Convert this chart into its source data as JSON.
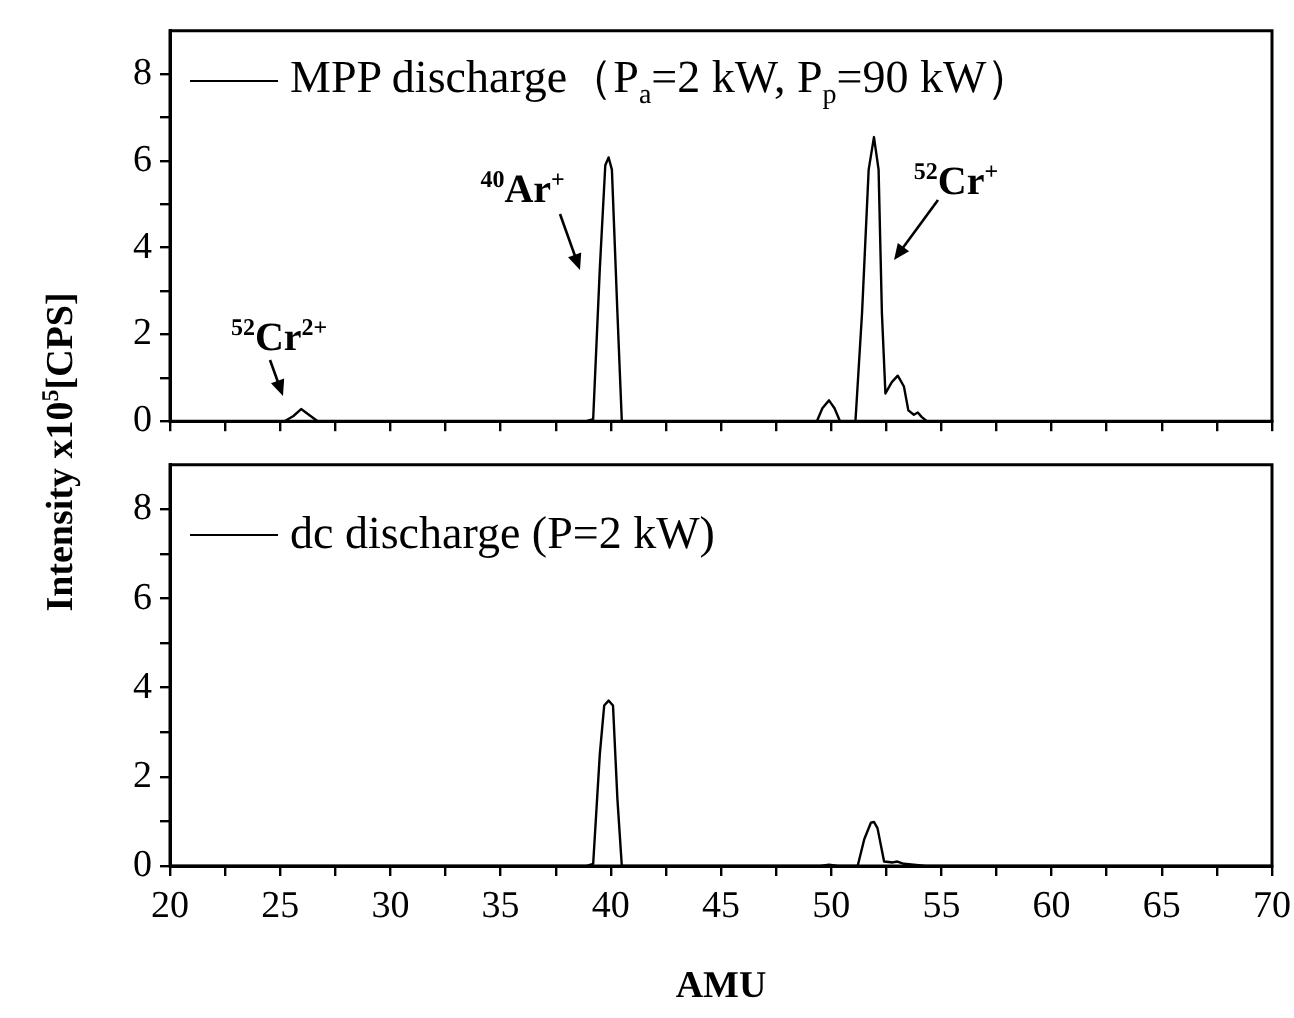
{
  "chart_data": [
    {
      "type": "line",
      "ylabel": "Intensity x10$^{5}$[CPS]",
      "series": [
        {
          "name": "MPP discharge（P$_{a}$=2 kW, P$_{p}$=90 kW）",
          "color": "#000000",
          "x": [
            20,
            25.2,
            25.6,
            25.95,
            26.3,
            26.7,
            38.9,
            39.2,
            39.5,
            39.75,
            39.9,
            40.05,
            40.3,
            40.5,
            49.35,
            49.6,
            49.9,
            50.15,
            50.4,
            51.1,
            51.4,
            51.7,
            51.94,
            52.15,
            52.3,
            52.46,
            52.75,
            53.02,
            53.3,
            53.5,
            53.75,
            53.93,
            54.1,
            54.34,
            70
          ],
          "values": [
            0,
            0,
            0.12,
            0.28,
            0.15,
            0,
            0,
            0.05,
            3.5,
            5.9,
            6.08,
            5.8,
            2.5,
            0,
            0,
            0.3,
            0.48,
            0.3,
            0,
            0,
            2.5,
            5.8,
            6.55,
            5.8,
            2.5,
            0.64,
            0.9,
            1.05,
            0.8,
            0.25,
            0.15,
            0.2,
            0.1,
            0,
            0
          ]
        }
      ],
      "xlim": [
        20,
        70
      ],
      "xticks": [
        20,
        {
          "value": 22.5,
          "label": null
        },
        {
          "value": 25,
          "label": null
        },
        {
          "value": 27.5,
          "label": null
        },
        {
          "value": 30,
          "label": null
        },
        {
          "value": 32.5,
          "label": null
        },
        {
          "value": 35,
          "label": null
        },
        {
          "value": 37.5,
          "label": null
        },
        {
          "value": 40,
          "label": null
        },
        {
          "value": 42.5,
          "label": null
        },
        {
          "value": 45,
          "label": null
        },
        {
          "value": 47.5,
          "label": null
        },
        {
          "value": 50,
          "label": null
        },
        {
          "value": 52.5,
          "label": null
        },
        {
          "value": 55,
          "label": null
        },
        {
          "value": 57.5,
          "label": null
        },
        {
          "value": 60,
          "label": null
        },
        {
          "value": 62.5,
          "label": null
        },
        {
          "value": 65,
          "label": null
        },
        {
          "value": 67.5,
          "label": null
        },
        {
          "value": 70,
          "label": null
        }
      ],
      "ylim": [
        0,
        9
      ],
      "yticks": [
        0,
        {
          "value": 1,
          "label": null
        },
        2,
        {
          "value": 3,
          "label": null
        },
        4,
        {
          "value": 5,
          "label": null
        },
        6,
        {
          "value": 7,
          "label": null
        },
        8
      ],
      "tick_labels": "y",
      "grid": false,
      "legend": "top left",
      "marker": "none",
      "line_style": "solid",
      "annotations": [
        {
          "text": "$^{52}$Cr$^{2+}$",
          "x": 25.95,
          "y": 0.28
        },
        {
          "text": "$^{40}$Ar$^{+}$",
          "x": 39.9,
          "y": 6.08
        },
        {
          "text": "$^{52}$Cr$^{+}$",
          "x": 51.94,
          "y": 6.55
        }
      ]
    },
    {
      "type": "line",
      "xlabel": "AMU",
      "series": [
        {
          "name": "dc discharge (P=2 kW)",
          "color": "#000000",
          "x": [
            20,
            38.9,
            39.2,
            39.5,
            39.7,
            39.9,
            40.1,
            40.3,
            40.5,
            49.5,
            49.9,
            50.3,
            51.2,
            51.5,
            51.8,
            51.94,
            52.1,
            52.4,
            52.8,
            53.0,
            53.3,
            54.3,
            70
          ],
          "values": [
            0,
            0,
            0.05,
            2.5,
            3.6,
            3.71,
            3.6,
            1.5,
            0,
            0,
            0.03,
            0,
            0,
            0.6,
            0.97,
            0.99,
            0.85,
            0.1,
            0.08,
            0.1,
            0.05,
            0,
            0
          ]
        }
      ],
      "xlim": [
        20,
        70
      ],
      "xticks": [
        20,
        {
          "value": 22.5,
          "label": null
        },
        25,
        {
          "value": 27.5,
          "label": null
        },
        30,
        {
          "value": 32.5,
          "label": null
        },
        35,
        {
          "value": 37.5,
          "label": null
        },
        40,
        {
          "value": 42.5,
          "label": null
        },
        45,
        {
          "value": 47.5,
          "label": null
        },
        50,
        {
          "value": 52.5,
          "label": null
        },
        55,
        {
          "value": 57.5,
          "label": null
        },
        60,
        {
          "value": 62.5,
          "label": null
        },
        65,
        {
          "value": 67.5,
          "label": null
        },
        70
      ],
      "ylim": [
        0,
        9
      ],
      "yticks": [
        0,
        {
          "value": 1,
          "label": null
        },
        2,
        {
          "value": 3,
          "label": null
        },
        4,
        {
          "value": 5,
          "label": null
        },
        6,
        {
          "value": 7,
          "label": null
        },
        8
      ],
      "grid": false,
      "legend": "top left",
      "marker": "none",
      "line_style": "solid"
    }
  ]
}
